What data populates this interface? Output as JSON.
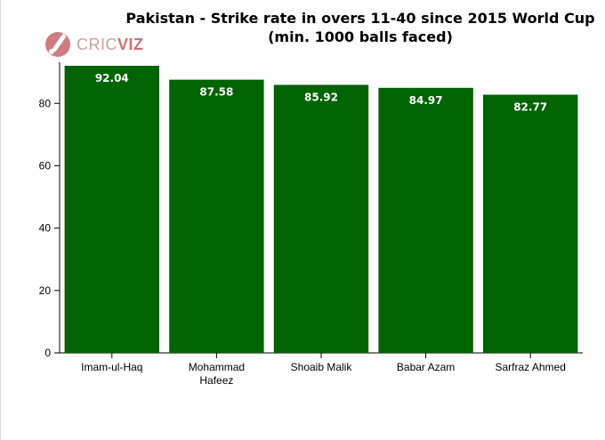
{
  "logo": {
    "prefix": "CRIC",
    "suffix": "VIZ",
    "icon": "cricket-bat-ball-icon",
    "color": "#c8666a"
  },
  "chart_data": {
    "type": "bar",
    "title": "Pakistan - Strike rate in overs 11-40 since 2015 World Cup (min. 1000 balls faced)",
    "categories": [
      [
        "Imam-ul-Haq"
      ],
      [
        "Mohammad",
        "Hafeez"
      ],
      [
        "Shoaib Malik"
      ],
      [
        "Babar Azam"
      ],
      [
        "Sarfraz Ahmed"
      ]
    ],
    "values": [
      92.04,
      87.58,
      85.92,
      84.97,
      82.77
    ],
    "value_labels": [
      "92.04",
      "87.58",
      "85.92",
      "84.97",
      "82.77"
    ],
    "xlabel": "",
    "ylabel": "",
    "ylim": [
      0,
      92.04
    ],
    "yticks": [
      0,
      20,
      40,
      60,
      80
    ],
    "grid": false,
    "legend": "none",
    "bar_color": "#006400"
  }
}
